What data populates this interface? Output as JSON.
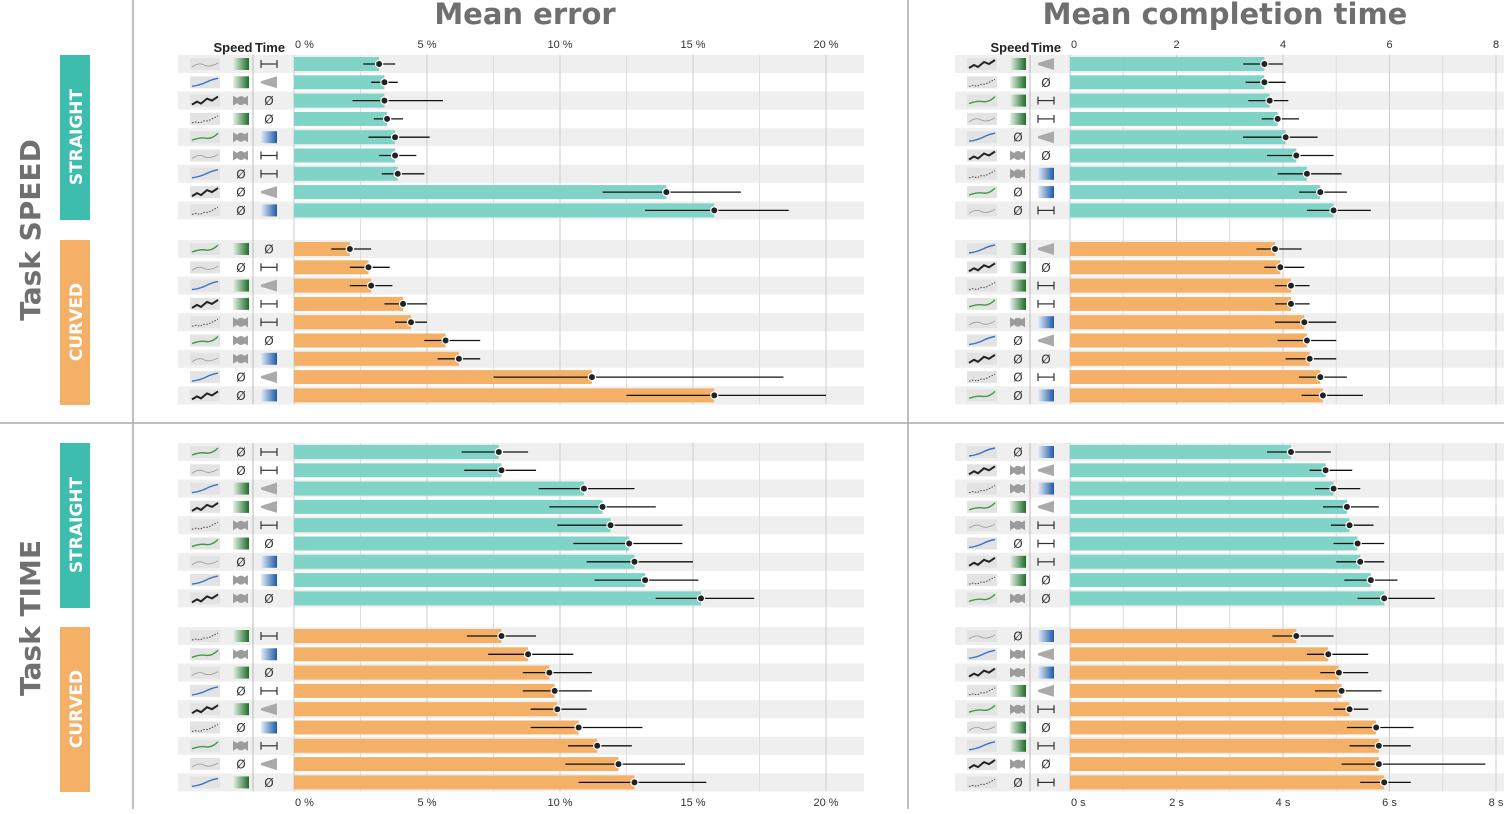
{
  "titles": {
    "error": "Mean error",
    "time": "Mean completion time"
  },
  "tasks": [
    "Task SPEED",
    "Task TIME"
  ],
  "conditions": [
    "STRAIGHT",
    "CURVED"
  ],
  "headers": {
    "speed": "Speed",
    "time": "Time"
  },
  "colors": {
    "straight": "#7fd3c7",
    "curved": "#f4b066",
    "condition_straight": "#3dbdad",
    "condition_curved": "#f4b066",
    "row_band": "#efefef",
    "grid": "#cfcfcf"
  },
  "empty_symbol": "Ø",
  "chart_data": [
    {
      "type": "bar",
      "metric": "Mean error",
      "task": "Task SPEED",
      "xlim": [
        0,
        20
      ],
      "xticks": [
        "0 %",
        "5 %",
        "10 %",
        "15 %",
        "20 %"
      ],
      "show_bottom_ticks": false,
      "series": [
        {
          "name": "STRAIGHT",
          "rows": [
            {
              "mean": 3.2,
              "lo": 2.6,
              "hi": 3.8,
              "speed": "gradient-green",
              "time": "error-bar"
            },
            {
              "mean": 3.4,
              "lo": 2.9,
              "hi": 3.9,
              "speed": "gradient-green",
              "time": "cone"
            },
            {
              "mean": 3.4,
              "lo": 2.2,
              "hi": 5.6,
              "speed": "bone",
              "time": "none"
            },
            {
              "mean": 3.5,
              "lo": 3.0,
              "hi": 4.1,
              "speed": "gradient-green",
              "time": "none"
            },
            {
              "mean": 3.8,
              "lo": 2.8,
              "hi": 5.1,
              "speed": "bone",
              "time": "gradient-blue"
            },
            {
              "mean": 3.8,
              "lo": 3.2,
              "hi": 4.6,
              "speed": "bone",
              "time": "error-bar"
            },
            {
              "mean": 3.9,
              "lo": 3.3,
              "hi": 4.9,
              "speed": "none",
              "time": "error-bar"
            },
            {
              "mean": 14.0,
              "lo": 11.6,
              "hi": 16.8,
              "speed": "none",
              "time": "cone"
            },
            {
              "mean": 15.8,
              "lo": 13.2,
              "hi": 18.6,
              "speed": "none",
              "time": "gradient-blue"
            }
          ]
        },
        {
          "name": "CURVED",
          "rows": [
            {
              "mean": 2.1,
              "lo": 1.4,
              "hi": 2.9,
              "speed": "gradient-green",
              "time": "none"
            },
            {
              "mean": 2.8,
              "lo": 2.1,
              "hi": 3.6,
              "speed": "none",
              "time": "error-bar"
            },
            {
              "mean": 2.9,
              "lo": 2.1,
              "hi": 3.7,
              "speed": "gradient-green",
              "time": "cone"
            },
            {
              "mean": 4.1,
              "lo": 3.4,
              "hi": 5.0,
              "speed": "gradient-green",
              "time": "error-bar"
            },
            {
              "mean": 4.4,
              "lo": 3.8,
              "hi": 5.0,
              "speed": "bone",
              "time": "error-bar"
            },
            {
              "mean": 5.7,
              "lo": 4.9,
              "hi": 7.0,
              "speed": "bone",
              "time": "none"
            },
            {
              "mean": 6.2,
              "lo": 5.4,
              "hi": 7.0,
              "speed": "bone",
              "time": "gradient-blue"
            },
            {
              "mean": 11.2,
              "lo": 7.5,
              "hi": 18.4,
              "speed": "none",
              "time": "cone"
            },
            {
              "mean": 15.8,
              "lo": 12.5,
              "hi": 20.0,
              "speed": "none",
              "time": "gradient-blue"
            }
          ]
        }
      ]
    },
    {
      "type": "bar",
      "metric": "Mean completion time",
      "task": "Task SPEED",
      "xlim": [
        0,
        8
      ],
      "xticks": [
        "0",
        "2",
        "4",
        "6",
        "8"
      ],
      "show_bottom_ticks": false,
      "series": [
        {
          "name": "STRAIGHT",
          "rows": [
            {
              "mean": 3.65,
              "lo": 3.25,
              "hi": 4.0,
              "speed": "gradient-green",
              "time": "cone"
            },
            {
              "mean": 3.65,
              "lo": 3.3,
              "hi": 4.05,
              "speed": "gradient-green",
              "time": "none"
            },
            {
              "mean": 3.75,
              "lo": 3.35,
              "hi": 4.1,
              "speed": "gradient-green",
              "time": "error-bar"
            },
            {
              "mean": 3.9,
              "lo": 3.6,
              "hi": 4.3,
              "speed": "gradient-green",
              "time": "error-bar"
            },
            {
              "mean": 4.05,
              "lo": 3.25,
              "hi": 4.65,
              "speed": "none",
              "time": "cone"
            },
            {
              "mean": 4.25,
              "lo": 3.7,
              "hi": 4.95,
              "speed": "bone",
              "time": "none"
            },
            {
              "mean": 4.45,
              "lo": 3.9,
              "hi": 5.1,
              "speed": "bone",
              "time": "gradient-blue"
            },
            {
              "mean": 4.7,
              "lo": 4.3,
              "hi": 5.2,
              "speed": "none",
              "time": "gradient-blue"
            },
            {
              "mean": 4.95,
              "lo": 4.45,
              "hi": 5.65,
              "speed": "none",
              "time": "error-bar"
            }
          ]
        },
        {
          "name": "CURVED",
          "rows": [
            {
              "mean": 3.85,
              "lo": 3.5,
              "hi": 4.35,
              "speed": "gradient-green",
              "time": "cone"
            },
            {
              "mean": 3.95,
              "lo": 3.65,
              "hi": 4.4,
              "speed": "gradient-green",
              "time": "none"
            },
            {
              "mean": 4.15,
              "lo": 3.85,
              "hi": 4.5,
              "speed": "gradient-green",
              "time": "error-bar"
            },
            {
              "mean": 4.15,
              "lo": 3.85,
              "hi": 4.5,
              "speed": "gradient-green",
              "time": "error-bar"
            },
            {
              "mean": 4.4,
              "lo": 3.85,
              "hi": 5.0,
              "speed": "bone",
              "time": "gradient-blue"
            },
            {
              "mean": 4.45,
              "lo": 3.9,
              "hi": 5.0,
              "speed": "none",
              "time": "cone"
            },
            {
              "mean": 4.5,
              "lo": 4.05,
              "hi": 5.0,
              "speed": "none",
              "time": "none"
            },
            {
              "mean": 4.7,
              "lo": 4.3,
              "hi": 5.2,
              "speed": "none",
              "time": "error-bar"
            },
            {
              "mean": 4.75,
              "lo": 4.35,
              "hi": 5.5,
              "speed": "none",
              "time": "gradient-blue"
            }
          ]
        }
      ]
    },
    {
      "type": "bar",
      "metric": "Mean error",
      "task": "Task TIME",
      "xlim": [
        0,
        20
      ],
      "xticks": [
        "0 %",
        "5 %",
        "10 %",
        "15 %",
        "20 %"
      ],
      "show_bottom_ticks": true,
      "series": [
        {
          "name": "STRAIGHT",
          "rows": [
            {
              "mean": 7.7,
              "lo": 6.3,
              "hi": 8.8,
              "speed": "none",
              "time": "error-bar"
            },
            {
              "mean": 7.8,
              "lo": 6.4,
              "hi": 9.1,
              "speed": "none",
              "time": "error-bar"
            },
            {
              "mean": 10.9,
              "lo": 9.2,
              "hi": 12.8,
              "speed": "gradient-green",
              "time": "cone"
            },
            {
              "mean": 11.6,
              "lo": 9.6,
              "hi": 13.6,
              "speed": "gradient-green",
              "time": "cone"
            },
            {
              "mean": 11.9,
              "lo": 9.9,
              "hi": 14.6,
              "speed": "bone",
              "time": "error-bar"
            },
            {
              "mean": 12.6,
              "lo": 10.5,
              "hi": 14.6,
              "speed": "gradient-green",
              "time": "none"
            },
            {
              "mean": 12.8,
              "lo": 11.0,
              "hi": 15.0,
              "speed": "none",
              "time": "gradient-blue"
            },
            {
              "mean": 13.2,
              "lo": 11.3,
              "hi": 15.2,
              "speed": "bone",
              "time": "gradient-blue"
            },
            {
              "mean": 15.3,
              "lo": 13.6,
              "hi": 17.3,
              "speed": "bone",
              "time": "none"
            }
          ]
        },
        {
          "name": "CURVED",
          "rows": [
            {
              "mean": 7.8,
              "lo": 6.5,
              "hi": 9.1,
              "speed": "gradient-green",
              "time": "error-bar"
            },
            {
              "mean": 8.8,
              "lo": 7.3,
              "hi": 10.5,
              "speed": "bone",
              "time": "gradient-blue"
            },
            {
              "mean": 9.6,
              "lo": 8.6,
              "hi": 11.2,
              "speed": "gradient-green",
              "time": "none"
            },
            {
              "mean": 9.8,
              "lo": 8.6,
              "hi": 11.2,
              "speed": "none",
              "time": "error-bar"
            },
            {
              "mean": 9.9,
              "lo": 8.9,
              "hi": 11.0,
              "speed": "gradient-green",
              "time": "cone"
            },
            {
              "mean": 10.7,
              "lo": 8.9,
              "hi": 13.1,
              "speed": "none",
              "time": "gradient-blue"
            },
            {
              "mean": 11.4,
              "lo": 10.3,
              "hi": 12.7,
              "speed": "bone",
              "time": "error-bar"
            },
            {
              "mean": 12.2,
              "lo": 10.2,
              "hi": 14.7,
              "speed": "none",
              "time": "cone"
            },
            {
              "mean": 12.8,
              "lo": 10.7,
              "hi": 15.5,
              "speed": "gradient-green",
              "time": "none"
            }
          ]
        }
      ]
    },
    {
      "type": "bar",
      "metric": "Mean completion time",
      "task": "Task TIME",
      "xlim": [
        0,
        8
      ],
      "xticks": [
        "0 s",
        "2 s",
        "4 s",
        "6 s",
        "8 s"
      ],
      "show_bottom_ticks": true,
      "series": [
        {
          "name": "STRAIGHT",
          "rows": [
            {
              "mean": 4.15,
              "lo": 3.7,
              "hi": 4.9,
              "speed": "none",
              "time": "gradient-blue"
            },
            {
              "mean": 4.8,
              "lo": 4.5,
              "hi": 5.3,
              "speed": "bone",
              "time": "cone"
            },
            {
              "mean": 4.95,
              "lo": 4.6,
              "hi": 5.45,
              "speed": "bone",
              "time": "gradient-blue"
            },
            {
              "mean": 5.2,
              "lo": 4.75,
              "hi": 5.8,
              "speed": "gradient-green",
              "time": "cone"
            },
            {
              "mean": 5.25,
              "lo": 4.9,
              "hi": 5.7,
              "speed": "bone",
              "time": "error-bar"
            },
            {
              "mean": 5.4,
              "lo": 4.95,
              "hi": 5.9,
              "speed": "none",
              "time": "error-bar"
            },
            {
              "mean": 5.45,
              "lo": 5.0,
              "hi": 5.9,
              "speed": "gradient-green",
              "time": "error-bar"
            },
            {
              "mean": 5.65,
              "lo": 5.15,
              "hi": 6.15,
              "speed": "gradient-green",
              "time": "none"
            },
            {
              "mean": 5.9,
              "lo": 5.4,
              "hi": 6.85,
              "speed": "bone",
              "time": "none"
            }
          ]
        },
        {
          "name": "CURVED",
          "rows": [
            {
              "mean": 4.25,
              "lo": 3.8,
              "hi": 4.95,
              "speed": "none",
              "time": "gradient-blue"
            },
            {
              "mean": 4.85,
              "lo": 4.45,
              "hi": 5.6,
              "speed": "bone",
              "time": "cone"
            },
            {
              "mean": 5.05,
              "lo": 4.7,
              "hi": 5.6,
              "speed": "bone",
              "time": "gradient-blue"
            },
            {
              "mean": 5.1,
              "lo": 4.6,
              "hi": 5.85,
              "speed": "gradient-green",
              "time": "cone"
            },
            {
              "mean": 5.25,
              "lo": 4.95,
              "hi": 5.6,
              "speed": "bone",
              "time": "error-bar"
            },
            {
              "mean": 5.75,
              "lo": 5.2,
              "hi": 6.45,
              "speed": "gradient-green",
              "time": "none"
            },
            {
              "mean": 5.8,
              "lo": 5.25,
              "hi": 6.4,
              "speed": "gradient-green",
              "time": "error-bar"
            },
            {
              "mean": 5.8,
              "lo": 5.1,
              "hi": 7.8,
              "speed": "bone",
              "time": "none"
            },
            {
              "mean": 5.9,
              "lo": 5.45,
              "hi": 6.4,
              "speed": "none",
              "time": "error-bar"
            }
          ]
        }
      ]
    }
  ]
}
